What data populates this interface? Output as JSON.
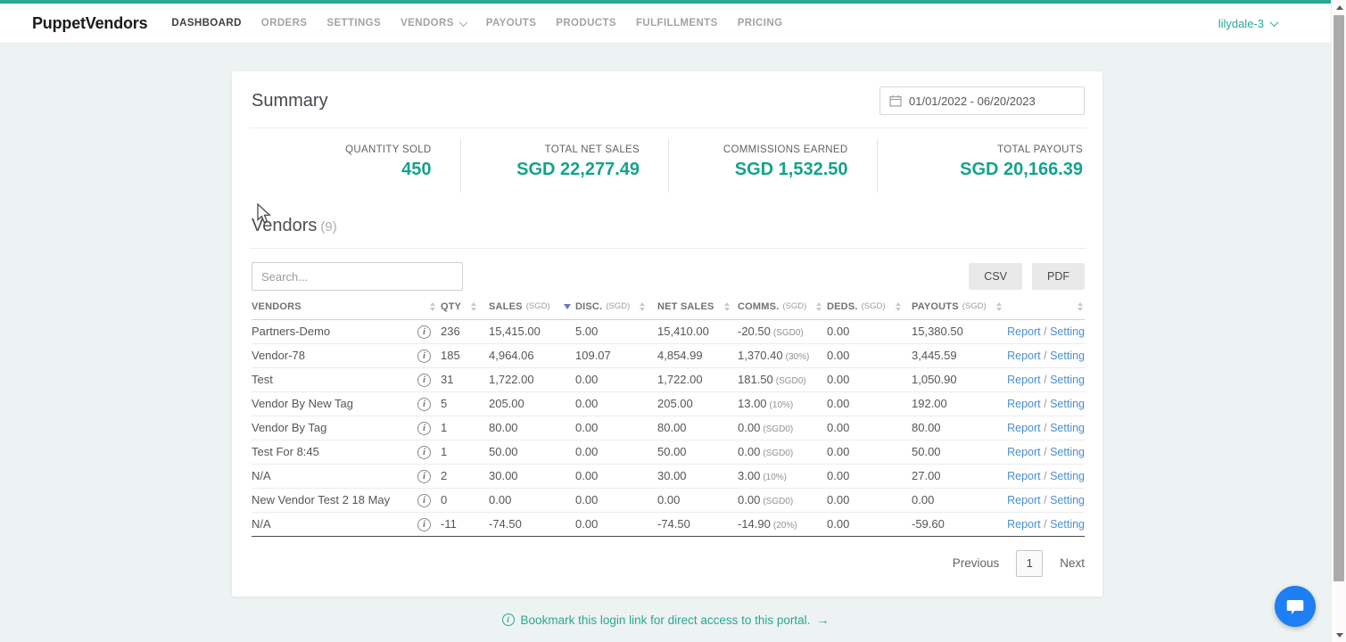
{
  "nav": {
    "logo": "PuppetVendors",
    "items": [
      {
        "label": "DASHBOARD",
        "active": true
      },
      {
        "label": "ORDERS"
      },
      {
        "label": "SETTINGS"
      },
      {
        "label": "VENDORS",
        "chevron": true
      },
      {
        "label": "PAYOUTS"
      },
      {
        "label": "PRODUCTS"
      },
      {
        "label": "FULFILLMENTS"
      },
      {
        "label": "PRICING"
      }
    ],
    "account": "lilydale-3"
  },
  "summary": {
    "title": "Summary",
    "date_range": "01/01/2022 - 06/20/2023",
    "stats": [
      {
        "label": "QUANTITY SOLD",
        "value": "450"
      },
      {
        "label": "TOTAL NET SALES",
        "value": "SGD 22,277.49"
      },
      {
        "label": "COMMISSIONS EARNED",
        "value": "SGD 1,532.50"
      },
      {
        "label": "TOTAL PAYOUTS",
        "value": "SGD 20,166.39"
      }
    ]
  },
  "vendors": {
    "title": "Vendors",
    "count": "(9)",
    "search_placeholder": "Search...",
    "export_buttons": [
      "CSV",
      "PDF"
    ],
    "columns": [
      {
        "label": "VENDORS",
        "note": ""
      },
      {
        "label": "QTY",
        "note": ""
      },
      {
        "label": "SALES",
        "note": "(SGD)",
        "sorted": "desc"
      },
      {
        "label": "DISC.",
        "note": "(SGD)"
      },
      {
        "label": "NET SALES",
        "note": ""
      },
      {
        "label": "COMMS.",
        "note": "(SGD)"
      },
      {
        "label": "DEDS.",
        "note": "(SGD)"
      },
      {
        "label": "PAYOUTS",
        "note": "(SGD)"
      },
      {
        "label": "",
        "note": "",
        "actions": true
      }
    ],
    "rows": [
      {
        "name": "Partners-Demo",
        "qty": "236",
        "sales": "15,415.00",
        "disc": "5.00",
        "net": "15,410.00",
        "comms": "-20.50",
        "comms_note": "(SGD0)",
        "deds": "0.00",
        "payouts": "15,380.50"
      },
      {
        "name": "Vendor-78",
        "qty": "185",
        "sales": "4,964.06",
        "disc": "109.07",
        "net": "4,854.99",
        "comms": "1,370.40",
        "comms_note": "(30%)",
        "deds": "0.00",
        "payouts": "3,445.59"
      },
      {
        "name": "Test",
        "qty": "31",
        "sales": "1,722.00",
        "disc": "0.00",
        "net": "1,722.00",
        "comms": "181.50",
        "comms_note": "(SGD0)",
        "deds": "0.00",
        "payouts": "1,050.90"
      },
      {
        "name": "Vendor By New Tag",
        "qty": "5",
        "sales": "205.00",
        "disc": "0.00",
        "net": "205.00",
        "comms": "13.00",
        "comms_note": "(10%)",
        "deds": "0.00",
        "payouts": "192.00"
      },
      {
        "name": "Vendor By Tag",
        "qty": "1",
        "sales": "80.00",
        "disc": "0.00",
        "net": "80.00",
        "comms": "0.00",
        "comms_note": "(SGD0)",
        "deds": "0.00",
        "payouts": "80.00"
      },
      {
        "name": "Test For 8:45",
        "qty": "1",
        "sales": "50.00",
        "disc": "0.00",
        "net": "50.00",
        "comms": "0.00",
        "comms_note": "(SGD0)",
        "deds": "0.00",
        "payouts": "50.00"
      },
      {
        "name": "N/A",
        "qty": "2",
        "sales": "30.00",
        "disc": "0.00",
        "net": "30.00",
        "comms": "3.00",
        "comms_note": "(10%)",
        "deds": "0.00",
        "payouts": "27.00"
      },
      {
        "name": "New Vendor Test 2 18 May",
        "qty": "0",
        "sales": "0.00",
        "disc": "0.00",
        "net": "0.00",
        "comms": "0.00",
        "comms_note": "(SGD0)",
        "deds": "0.00",
        "payouts": "0.00"
      },
      {
        "name": "N/A",
        "qty": "-11",
        "sales": "-74.50",
        "disc": "0.00",
        "net": "-74.50",
        "comms": "-14.90",
        "comms_note": "(20%)",
        "deds": "0.00",
        "payouts": "-59.60"
      }
    ],
    "row_actions": {
      "report": "Report",
      "separator": "/",
      "setting": "Setting"
    }
  },
  "pagination": {
    "previous": "Previous",
    "page": "1",
    "next": "Next"
  },
  "footer": {
    "link_text": "Bookmark this login link for direct access to this portal."
  },
  "colors": {
    "accent_teal": "#2aa795",
    "stat_value_teal": "#16a28c",
    "link_blue": "#4a90d2",
    "sort_active_indigo": "#6e75c4",
    "chat_blue": "#1e7ef3"
  }
}
